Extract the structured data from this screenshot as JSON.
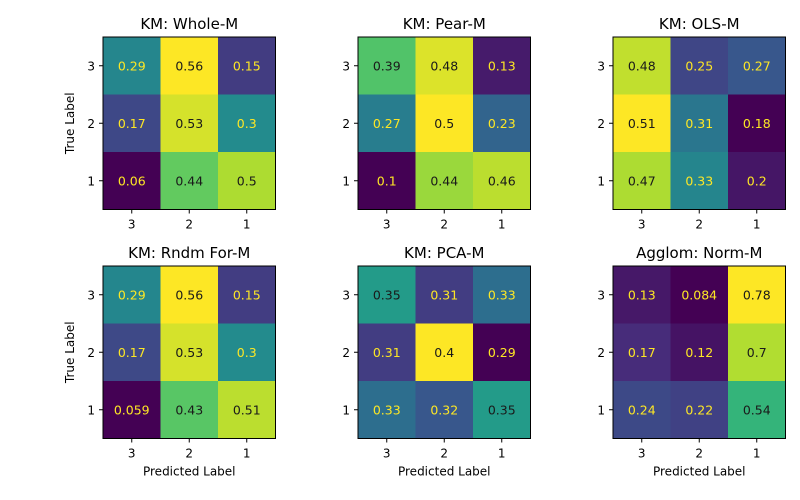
{
  "figure": {
    "background": "#ffffff"
  },
  "chart_data": [
    {
      "type": "heatmap",
      "title": "KM: Whole-M",
      "xlabel": "",
      "ylabel": "True Label",
      "x_ticks": [
        "3",
        "2",
        "1"
      ],
      "y_ticks": [
        "3",
        "2",
        "1"
      ],
      "values": [
        [
          0.29,
          0.56,
          0.15
        ],
        [
          0.17,
          0.53,
          0.3
        ],
        [
          0.06,
          0.44,
          0.5
        ]
      ],
      "labels": [
        [
          "0.29",
          "0.56",
          "0.15"
        ],
        [
          "0.17",
          "0.53",
          "0.3"
        ],
        [
          "0.06",
          "0.44",
          "0.5"
        ]
      ],
      "colormap": "viridis"
    },
    {
      "type": "heatmap",
      "title": "KM: Pear-M",
      "xlabel": "",
      "ylabel": "",
      "x_ticks": [
        "3",
        "2",
        "1"
      ],
      "y_ticks": [
        "3",
        "2",
        "1"
      ],
      "values": [
        [
          0.39,
          0.48,
          0.13
        ],
        [
          0.27,
          0.5,
          0.23
        ],
        [
          0.1,
          0.44,
          0.46
        ]
      ],
      "labels": [
        [
          "0.39",
          "0.48",
          "0.13"
        ],
        [
          "0.27",
          "0.5",
          "0.23"
        ],
        [
          "0.1",
          "0.44",
          "0.46"
        ]
      ],
      "colormap": "viridis"
    },
    {
      "type": "heatmap",
      "title": "KM: OLS-M",
      "xlabel": "",
      "ylabel": "",
      "x_ticks": [
        "3",
        "2",
        "1"
      ],
      "y_ticks": [
        "3",
        "2",
        "1"
      ],
      "values": [
        [
          0.48,
          0.25,
          0.27
        ],
        [
          0.51,
          0.31,
          0.18
        ],
        [
          0.47,
          0.33,
          0.2
        ]
      ],
      "labels": [
        [
          "0.48",
          "0.25",
          "0.27"
        ],
        [
          "0.51",
          "0.31",
          "0.18"
        ],
        [
          "0.47",
          "0.33",
          "0.2"
        ]
      ],
      "colormap": "viridis"
    },
    {
      "type": "heatmap",
      "title": "KM: Rndm For-M",
      "xlabel": "Predicted Label",
      "ylabel": "True Label",
      "x_ticks": [
        "3",
        "2",
        "1"
      ],
      "y_ticks": [
        "3",
        "2",
        "1"
      ],
      "values": [
        [
          0.29,
          0.56,
          0.15
        ],
        [
          0.17,
          0.53,
          0.3
        ],
        [
          0.059,
          0.43,
          0.51
        ]
      ],
      "labels": [
        [
          "0.29",
          "0.56",
          "0.15"
        ],
        [
          "0.17",
          "0.53",
          "0.3"
        ],
        [
          "0.059",
          "0.43",
          "0.51"
        ]
      ],
      "colormap": "viridis"
    },
    {
      "type": "heatmap",
      "title": "KM: PCA-M",
      "xlabel": "Predicted Label",
      "ylabel": "",
      "x_ticks": [
        "3",
        "2",
        "1"
      ],
      "y_ticks": [
        "3",
        "2",
        "1"
      ],
      "values": [
        [
          0.35,
          0.31,
          0.33
        ],
        [
          0.31,
          0.4,
          0.29
        ],
        [
          0.33,
          0.32,
          0.35
        ]
      ],
      "labels": [
        [
          "0.35",
          "0.31",
          "0.33"
        ],
        [
          "0.31",
          "0.4",
          "0.29"
        ],
        [
          "0.33",
          "0.32",
          "0.35"
        ]
      ],
      "colormap": "viridis"
    },
    {
      "type": "heatmap",
      "title": "Agglom: Norm-M",
      "xlabel": "Predicted Label",
      "ylabel": "",
      "x_ticks": [
        "3",
        "2",
        "1"
      ],
      "y_ticks": [
        "3",
        "2",
        "1"
      ],
      "values": [
        [
          0.13,
          0.084,
          0.78
        ],
        [
          0.17,
          0.12,
          0.7
        ],
        [
          0.24,
          0.22,
          0.54
        ]
      ],
      "labels": [
        [
          "0.13",
          "0.084",
          "0.78"
        ],
        [
          "0.17",
          "0.12",
          "0.7"
        ],
        [
          "0.24",
          "0.22",
          "0.54"
        ]
      ],
      "colormap": "viridis"
    }
  ]
}
